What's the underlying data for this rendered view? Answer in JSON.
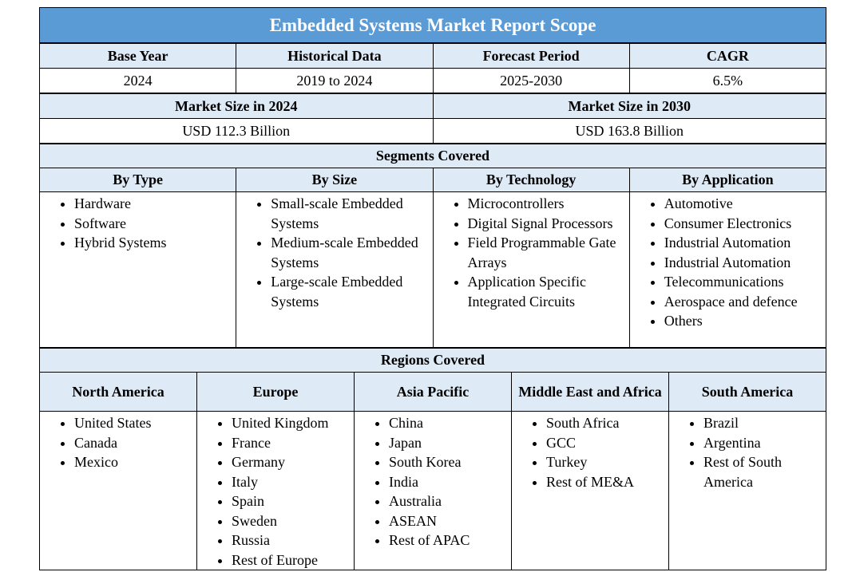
{
  "title": "Embedded Systems Market Report Scope",
  "summary": {
    "headers": [
      "Base Year",
      "Historical Data",
      "Forecast Period",
      "CAGR"
    ],
    "values": [
      "2024",
      "2019 to 2024",
      "2025-2030",
      "6.5%"
    ]
  },
  "market_size": {
    "headers": [
      "Market Size in 2024",
      "Market Size in 2030"
    ],
    "values": [
      "USD 112.3 Billion",
      "USD 163.8 Billion"
    ]
  },
  "segments": {
    "title": "Segments Covered",
    "columns": [
      {
        "header": "By Type",
        "items": [
          "Hardware",
          "Software",
          "Hybrid Systems"
        ]
      },
      {
        "header": "By Size",
        "items": [
          "Small-scale Embedded Systems",
          "Medium-scale Embedded Systems",
          "Large-scale Embedded Systems"
        ]
      },
      {
        "header": "By Technology",
        "items": [
          "Microcontrollers",
          "Digital Signal Processors",
          "Field Programmable Gate Arrays",
          "Application Specific Integrated Circuits"
        ]
      },
      {
        "header": "By Application",
        "items": [
          "Automotive",
          "Consumer Electronics",
          "Industrial Automation",
          "Industrial Automation",
          "Telecommunications",
          "Aerospace and defence",
          "Others"
        ]
      }
    ]
  },
  "regions": {
    "title": "Regions Covered",
    "columns": [
      {
        "header": "North America",
        "items": [
          "United States",
          "Canada",
          "Mexico"
        ]
      },
      {
        "header": "Europe",
        "items": [
          "United Kingdom",
          "France",
          "Germany",
          "Italy",
          "Spain",
          "Sweden",
          "Russia",
          "Rest of Europe"
        ]
      },
      {
        "header": "Asia Pacific",
        "items": [
          "China",
          "Japan",
          "South Korea",
          "India",
          "Australia",
          "ASEAN",
          "Rest of APAC"
        ]
      },
      {
        "header": "Middle East and Africa",
        "items": [
          "South Africa",
          "GCC",
          "Turkey",
          "Rest of ME&A"
        ]
      },
      {
        "header": "South America",
        "items": [
          "Brazil",
          "Argentina",
          "Rest of South America"
        ]
      }
    ]
  }
}
